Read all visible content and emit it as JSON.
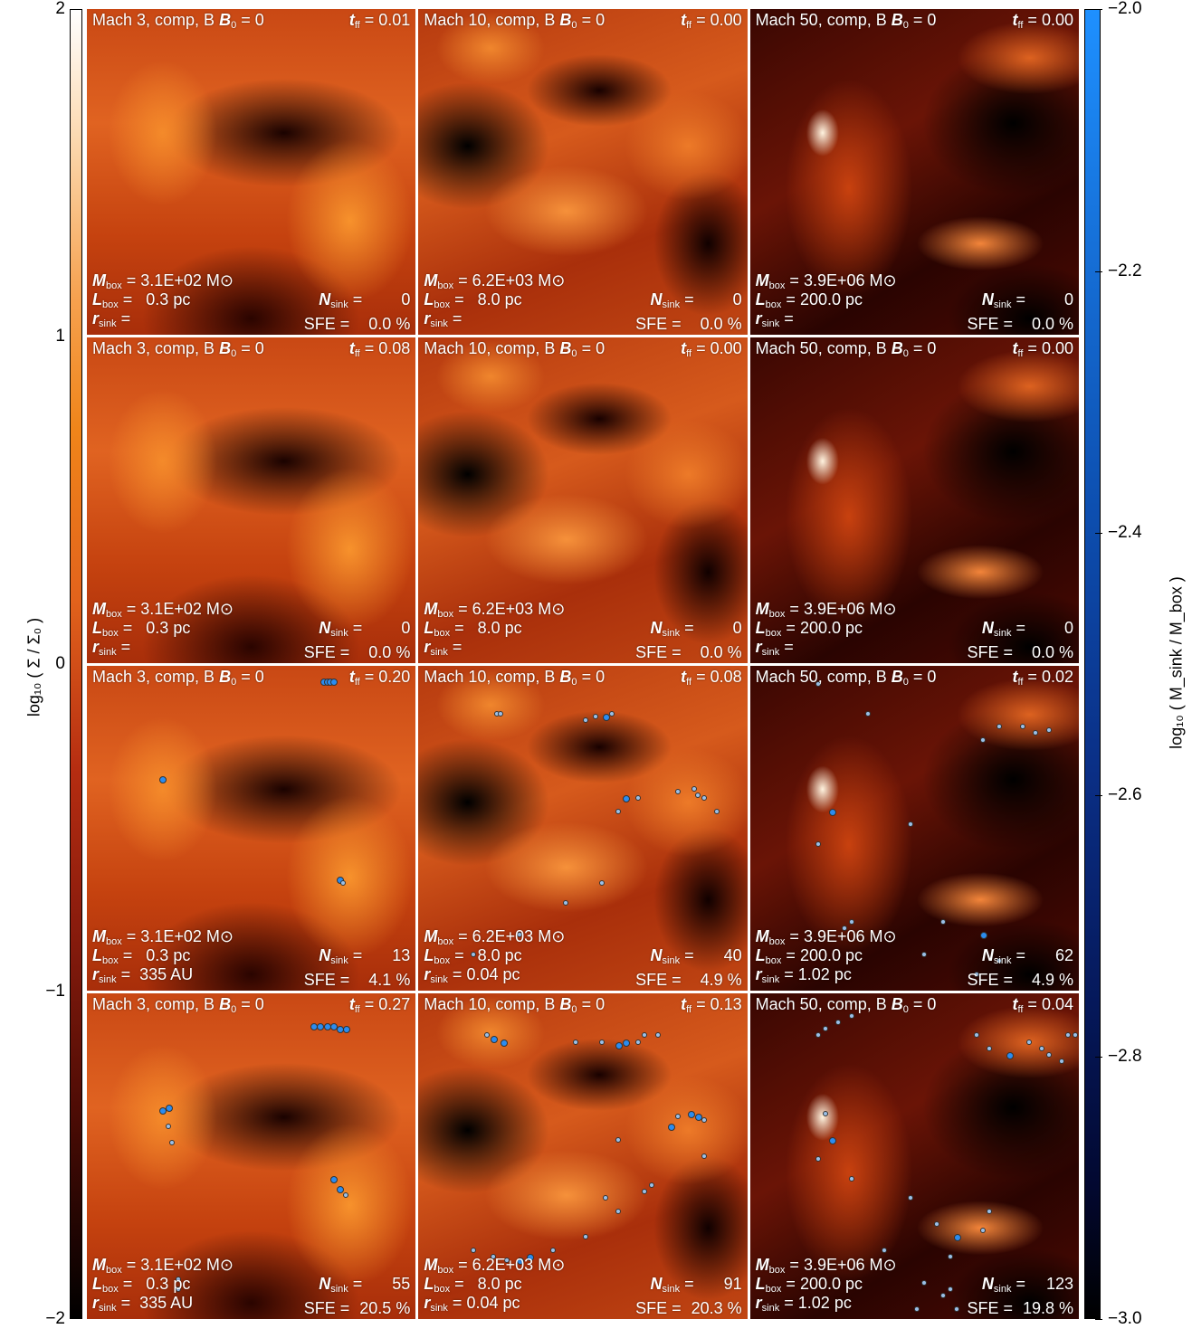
{
  "left_colorbar": {
    "label": "log₁₀ ( Σ / Σ₀ )",
    "ticks": [
      "2",
      "1",
      "0",
      "−1",
      "−2"
    ]
  },
  "right_colorbar": {
    "label": "log₁₀ ( M_sink / M_box )",
    "ticks": [
      "−2.0",
      "−2.2",
      "−2.4",
      "−2.6",
      "−2.8",
      "−3.0"
    ]
  },
  "panels": [
    {
      "title": "Mach 3, comp, B",
      "time": "0.01",
      "mbox": "3.1E+02",
      "lbox": "  0.3 pc",
      "rsink": "",
      "nsink": "0",
      "sfe": "0.0 %",
      "type": "m3"
    },
    {
      "title": "Mach 10, comp, B",
      "time": "0.00",
      "mbox": "6.2E+03",
      "lbox": "  8.0 pc",
      "rsink": "",
      "nsink": "0",
      "sfe": "0.0 %",
      "type": "m10"
    },
    {
      "title": "Mach 50, comp, B",
      "time": "0.00",
      "mbox": "3.9E+06",
      "lbox": "200.0 pc",
      "rsink": "",
      "nsink": "0",
      "sfe": "0.0 %",
      "type": "m50"
    },
    {
      "title": "Mach 3, comp, B",
      "time": "0.08",
      "mbox": "3.1E+02",
      "lbox": "  0.3 pc",
      "rsink": "",
      "nsink": "0",
      "sfe": "0.0 %",
      "type": "m3"
    },
    {
      "title": "Mach 10, comp, B",
      "time": "0.00",
      "mbox": "6.2E+03",
      "lbox": "  8.0 pc",
      "rsink": "",
      "nsink": "0",
      "sfe": "0.0 %",
      "type": "m10"
    },
    {
      "title": "Mach 50, comp, B",
      "time": "0.00",
      "mbox": "3.9E+06",
      "lbox": "200.0 pc",
      "rsink": "",
      "nsink": "0",
      "sfe": "0.0 %",
      "type": "m50"
    },
    {
      "title": "Mach 3, comp, B",
      "time": "0.20",
      "mbox": "3.1E+02",
      "lbox": "  0.3 pc",
      "rsink": " 335 AU",
      "nsink": "13",
      "sfe": "4.1 %",
      "type": "m3"
    },
    {
      "title": "Mach 10, comp, B",
      "time": "0.08",
      "mbox": "6.2E+03",
      "lbox": "  8.0 pc",
      "rsink": "0.04 pc",
      "nsink": "40",
      "sfe": "4.9 %",
      "type": "m10"
    },
    {
      "title": "Mach 50, comp, B",
      "time": "0.02",
      "mbox": "3.9E+06",
      "lbox": "200.0 pc",
      "rsink": "1.02 pc",
      "nsink": "62",
      "sfe": "4.9 %",
      "type": "m50"
    },
    {
      "title": "Mach 3, comp, B",
      "time": "0.27",
      "mbox": "3.1E+02",
      "lbox": "  0.3 pc",
      "rsink": " 335 AU",
      "nsink": "55",
      "sfe": "20.5 %",
      "type": "m3"
    },
    {
      "title": "Mach 10, comp, B",
      "time": "0.13",
      "mbox": "6.2E+03",
      "lbox": "  8.0 pc",
      "rsink": "0.04 pc",
      "nsink": "91",
      "sfe": "20.3 %",
      "type": "m10"
    },
    {
      "title": "Mach 50, comp, B",
      "time": "0.04",
      "mbox": "3.9E+06",
      "lbox": "200.0 pc",
      "rsink": "1.02 pc",
      "nsink": "123",
      "sfe": "19.8 %",
      "type": "m50"
    }
  ],
  "common": {
    "b0_value": "= 0",
    "time_eq": "=",
    "mbox_unit": "M⊙",
    "eq": "=",
    "sfe_label": "SFE =",
    "t_label": "t",
    "t_sub": "ff",
    "b_sub": "0",
    "m_label": "M",
    "m_sub": "box",
    "l_label": "L",
    "l_sub": "box",
    "r_label": "r",
    "r_sub": "sink",
    "n_label": "N",
    "n_sub": "sink"
  }
}
